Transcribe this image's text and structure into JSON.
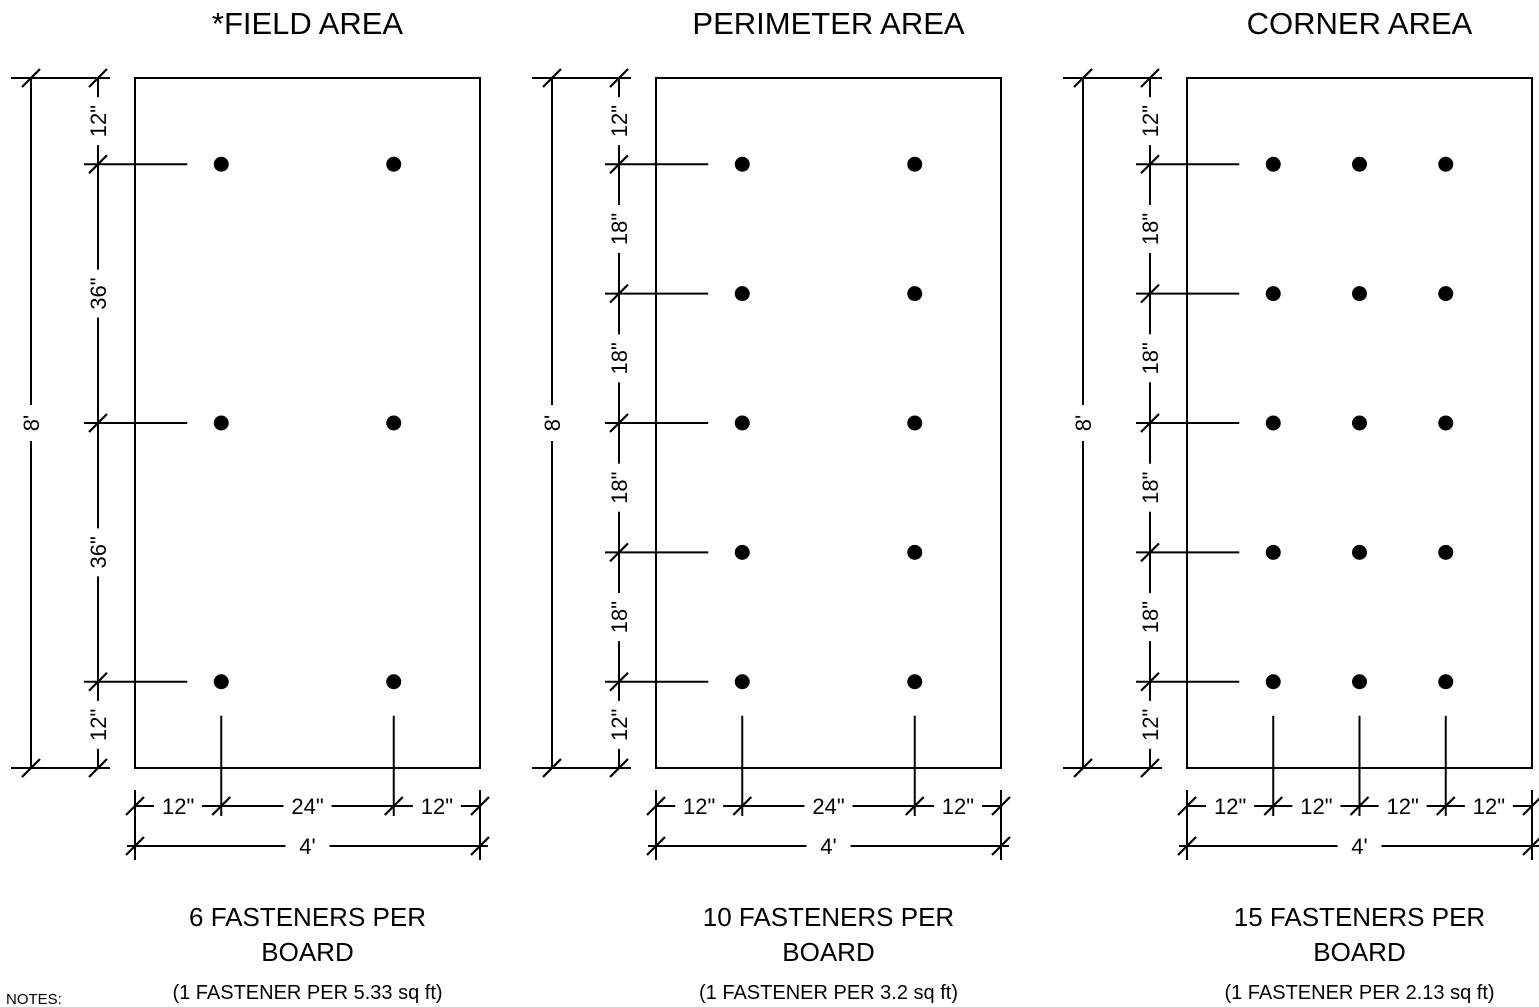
{
  "panels": [
    {
      "title": "*FIELD AREA",
      "vertical_dims": [
        "12\"",
        "36\"",
        "36\"",
        "12\""
      ],
      "total_height_label": "8'",
      "horizontal_dims": [
        "12\"",
        "24\"",
        "12\""
      ],
      "total_width_label": "4'",
      "fastener_rows": 3,
      "fastener_cols": 2,
      "caption_line1": "6 FASTENERS PER",
      "caption_line2": "BOARD",
      "caption_sub": "(1 FASTENER PER 5.33 sq ft)"
    },
    {
      "title": "PERIMETER AREA",
      "vertical_dims": [
        "12\"",
        "18\"",
        "18\"",
        "18\"",
        "18\"",
        "12\""
      ],
      "total_height_label": "8'",
      "horizontal_dims": [
        "12\"",
        "24\"",
        "12\""
      ],
      "total_width_label": "4'",
      "fastener_rows": 5,
      "fastener_cols": 2,
      "caption_line1": "10 FASTENERS PER",
      "caption_line2": "BOARD",
      "caption_sub": "(1 FASTENER PER 3.2 sq ft)"
    },
    {
      "title": "CORNER AREA",
      "vertical_dims": [
        "12\"",
        "18\"",
        "18\"",
        "18\"",
        "18\"",
        "12\""
      ],
      "total_height_label": "8'",
      "horizontal_dims": [
        "12\"",
        "12\"",
        "12\"",
        "12\""
      ],
      "total_width_label": "4'",
      "fastener_rows": 5,
      "fastener_cols": 3,
      "caption_line1": "15 FASTENERS PER",
      "caption_line2": "BOARD",
      "caption_sub": "(1 FASTENER PER 2.13 sq ft)"
    }
  ],
  "notes_label": "NOTES:"
}
